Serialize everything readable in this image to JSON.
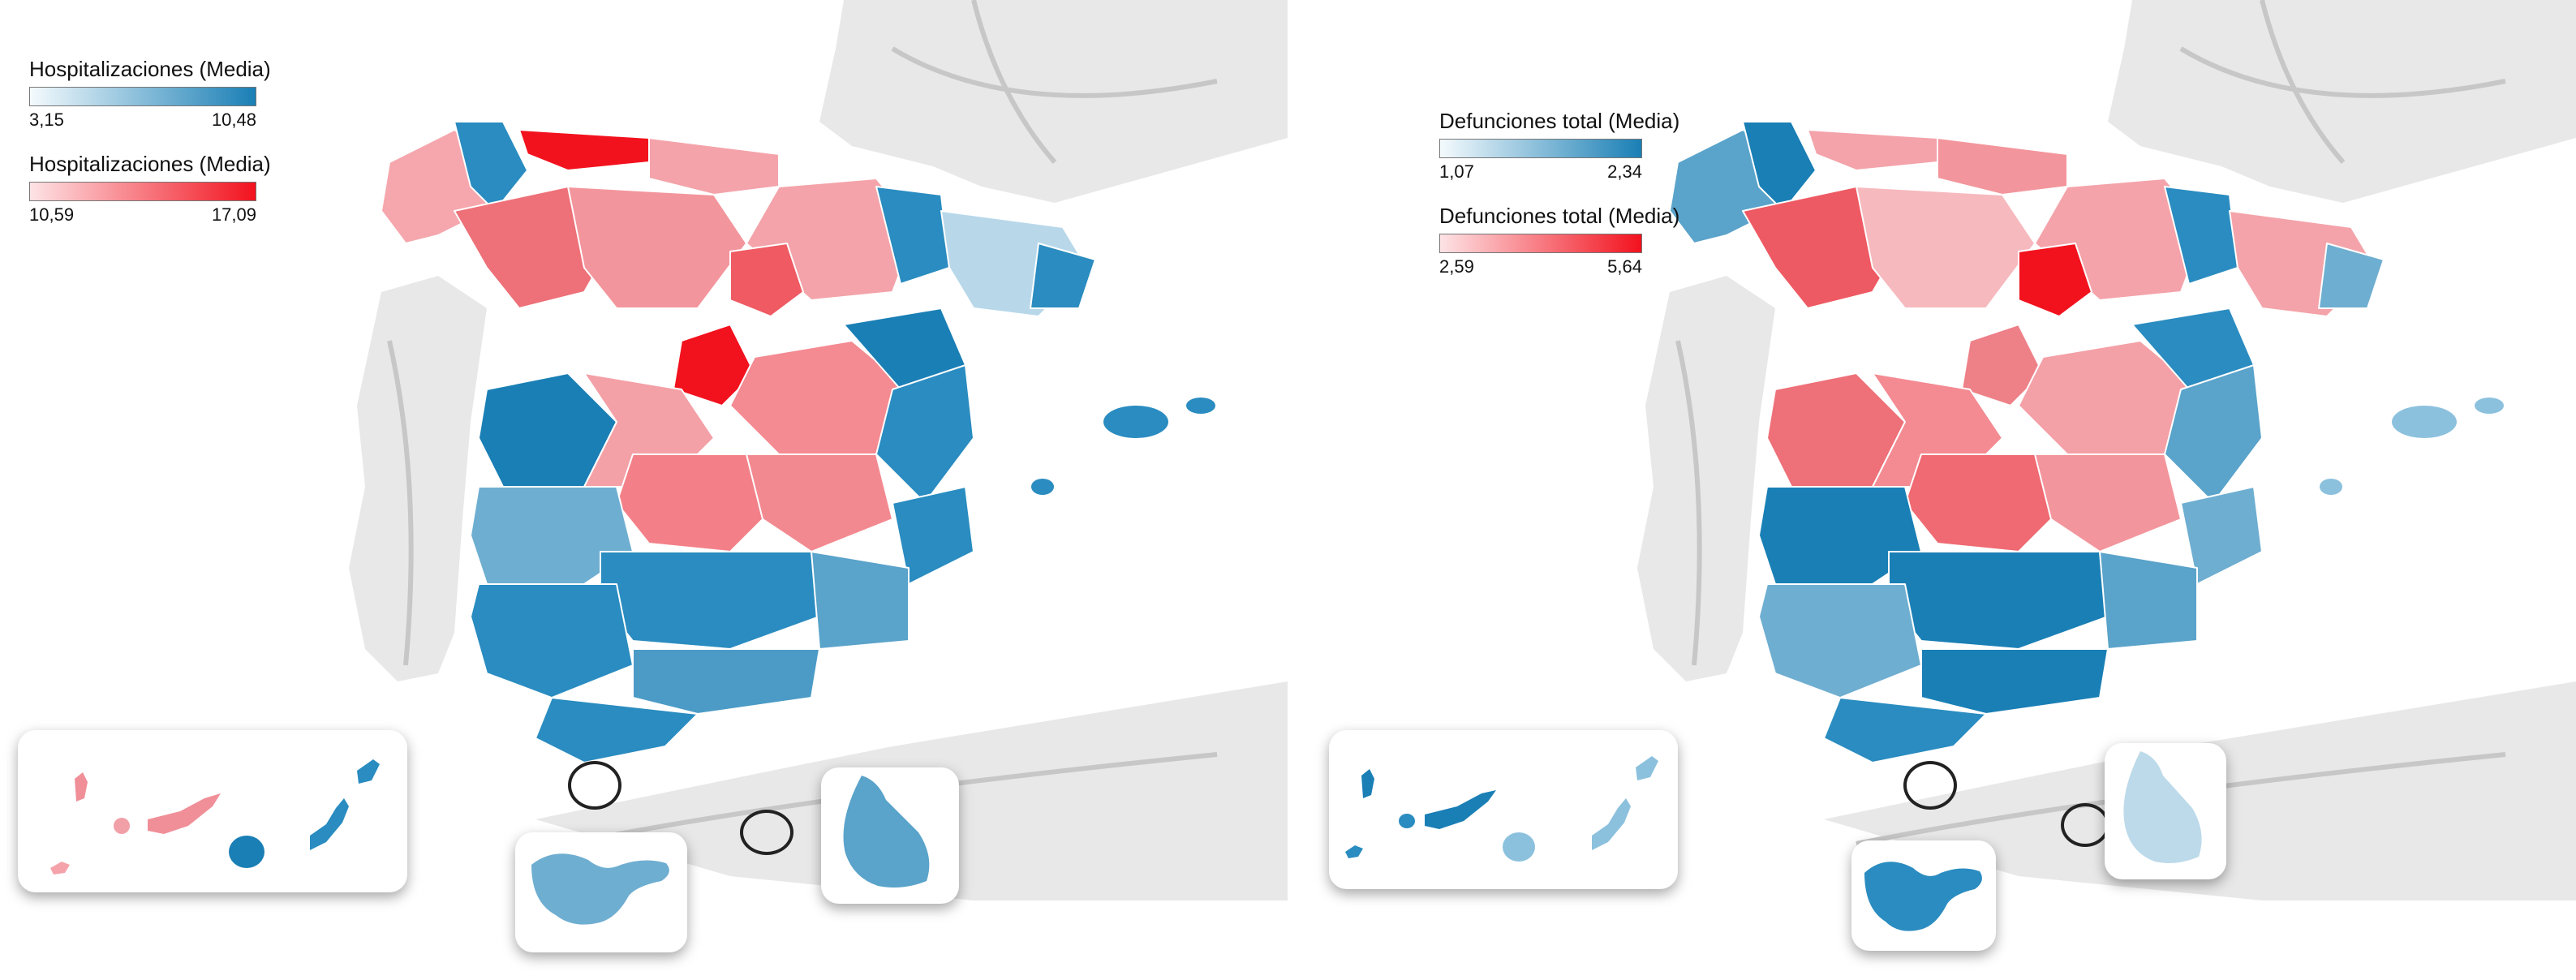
{
  "colors": {
    "blue_low": "#cfe6f2",
    "blue_high": "#1a7fb5",
    "red_low": "#fbd0d3",
    "red_high": "#f2121e",
    "land_background": "#e6e6e6",
    "road": "#c8c8c8",
    "border": "#ffffff"
  },
  "left_map": {
    "legends": [
      {
        "title": "Hospitalizaciones (Media)",
        "min": "3,15",
        "max": "10,48",
        "scale": "blue"
      },
      {
        "title": "Hospitalizaciones (Media)",
        "min": "10,59",
        "max": "17,09",
        "scale": "red"
      }
    ],
    "insets": [
      "canary-islands",
      "ceuta",
      "melilla"
    ]
  },
  "right_map": {
    "legends": [
      {
        "title": "Defunciones total (Media)",
        "min": "1,07",
        "max": "2,34",
        "scale": "blue"
      },
      {
        "title": "Defunciones total (Media)",
        "min": "2,59",
        "max": "5,64",
        "scale": "red"
      }
    ],
    "insets": [
      "canary-islands",
      "ceuta",
      "melilla"
    ]
  }
}
